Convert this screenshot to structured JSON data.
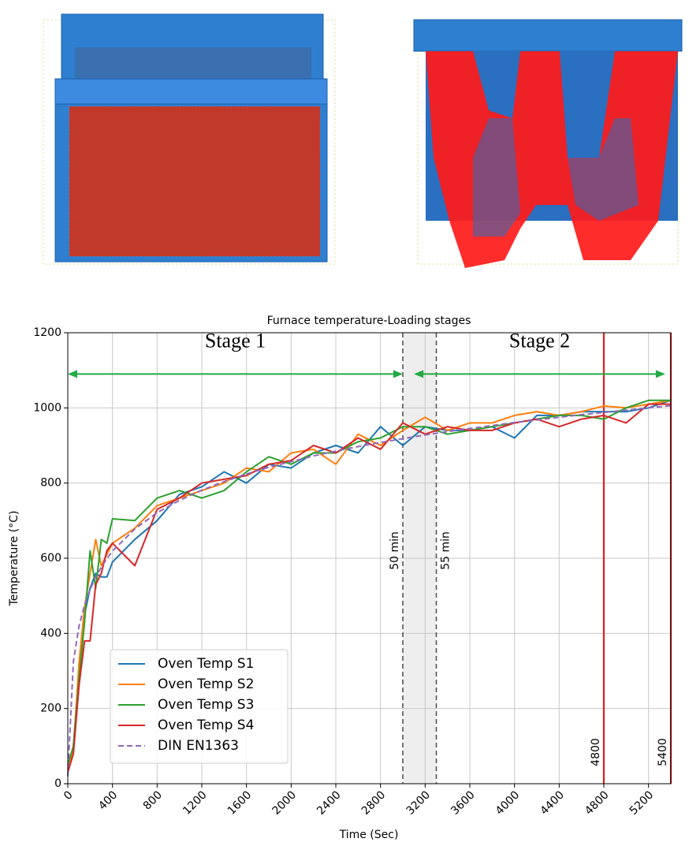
{
  "chart_data": {
    "type": "line",
    "title": "Furnace temperature-Loading stages",
    "x_label": "Time (Sec)",
    "y_label": "Temperature (°C)",
    "x": [
      0,
      50,
      100,
      150,
      200,
      250,
      300,
      350,
      400,
      600,
      800,
      1000,
      1200,
      1400,
      1600,
      1800,
      2000,
      2200,
      2400,
      2600,
      2800,
      3000,
      3200,
      3400,
      3600,
      3800,
      4000,
      4200,
      4400,
      4600,
      4800,
      5000,
      5200,
      5400
    ],
    "series": [
      {
        "name": "Oven Temp S1",
        "color": "#1f77b4",
        "style": "solid",
        "values": [
          40,
          100,
          300,
          450,
          520,
          560,
          550,
          550,
          590,
          650,
          700,
          770,
          790,
          830,
          800,
          850,
          840,
          880,
          900,
          880,
          950,
          900,
          950,
          940,
          940,
          950,
          920,
          980,
          980,
          990,
          990,
          990,
          1000,
          1020
        ]
      },
      {
        "name": "Oven Temp S2",
        "color": "#ff7f0e",
        "style": "solid",
        "values": [
          40,
          90,
          320,
          470,
          560,
          650,
          580,
          610,
          640,
          680,
          740,
          760,
          780,
          800,
          840,
          830,
          880,
          890,
          850,
          930,
          900,
          940,
          975,
          940,
          960,
          960,
          980,
          990,
          980,
          990,
          1005,
          1000,
          1010,
          1020
        ]
      },
      {
        "name": "Oven Temp S3",
        "color": "#2ca02c",
        "style": "solid",
        "values": [
          50,
          100,
          280,
          430,
          620,
          520,
          650,
          640,
          705,
          700,
          760,
          780,
          760,
          780,
          830,
          870,
          850,
          880,
          880,
          910,
          920,
          950,
          950,
          930,
          940,
          950,
          960,
          970,
          980,
          980,
          970,
          1000,
          1020,
          1020
        ]
      },
      {
        "name": "Oven Temp S4",
        "color": "#d62728",
        "style": "solid",
        "values": [
          30,
          80,
          260,
          380,
          380,
          530,
          560,
          620,
          640,
          580,
          730,
          760,
          800,
          810,
          820,
          850,
          860,
          900,
          880,
          920,
          890,
          960,
          930,
          950,
          940,
          940,
          960,
          970,
          950,
          970,
          980,
          960,
          1010,
          1010
        ]
      },
      {
        "name": "DIN EN1363",
        "color": "#9467bd",
        "style": "dashed",
        "values": [
          20,
          325,
          419,
          476,
          517,
          550,
          576,
          599,
          619,
          678,
          721,
          754,
          781,
          804,
          824,
          842,
          857,
          872,
          885,
          897,
          908,
          918,
          928,
          937,
          945,
          953,
          961,
          968,
          975,
          982,
          988,
          994,
          1000,
          1006
        ]
      }
    ],
    "xlim": [
      0,
      5400
    ],
    "ylim": [
      0,
      1200
    ],
    "xticks": [
      0,
      400,
      800,
      1200,
      1600,
      2000,
      2400,
      2800,
      3200,
      3600,
      4000,
      4400,
      4800,
      5200
    ],
    "yticks": [
      0,
      200,
      400,
      600,
      800,
      1000,
      1200
    ],
    "grid": true,
    "legend": "lower left",
    "span": {
      "x0": 3000,
      "x1": 3300,
      "color": "#eeeeee"
    },
    "vlines": [
      {
        "x": 3000,
        "label": "50 min",
        "color": "#555555",
        "style": "dashed"
      },
      {
        "x": 3300,
        "label": "55 min",
        "color": "#555555",
        "style": "dashed"
      },
      {
        "x": 4800,
        "label": "4800",
        "color": "#e02020",
        "style": "solid"
      },
      {
        "x": 5400,
        "label": "5400",
        "color": "#e02020",
        "style": "solid"
      }
    ],
    "stages": [
      {
        "label": "Stage 1",
        "x0": 0,
        "x1": 3000,
        "y": 1090
      },
      {
        "label": "Stage 2",
        "x0": 3100,
        "x1": 5350,
        "y": 1090
      }
    ],
    "stage_color": "#22aa44"
  }
}
